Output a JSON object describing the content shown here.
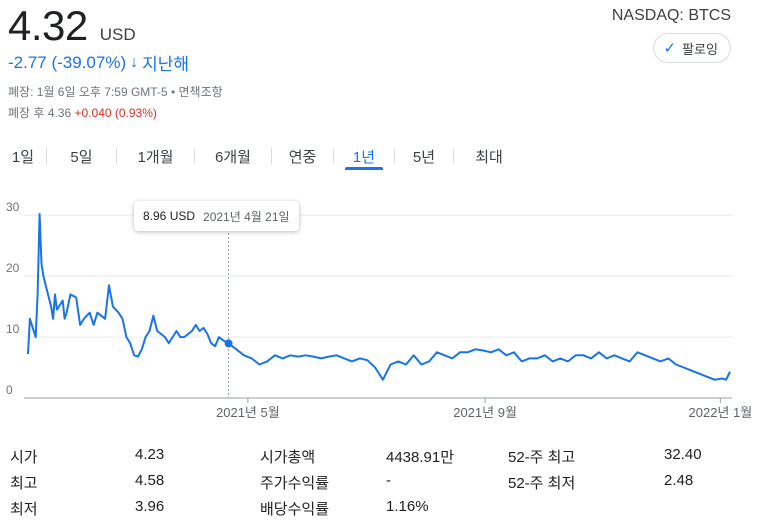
{
  "quote": {
    "price": "4.32",
    "currency": "USD",
    "change": "-2.77 (-39.07%)",
    "change_arrow": "↓",
    "change_period": "지난해",
    "close_info": "폐장: 1월 6일 오후 7:59 GMT-5 • 면책조항",
    "after_hours_label": "폐장 후 4.36",
    "after_hours_change": "+0.040 (0.93%)",
    "exchange": "NASDAQ: BTCS",
    "follow_label": "팔로잉",
    "follow_icon": "check-icon"
  },
  "tabs": [
    {
      "label": "1일"
    },
    {
      "label": "5일"
    },
    {
      "label": "1개월"
    },
    {
      "label": "6개월"
    },
    {
      "label": "연중"
    },
    {
      "label": "1년",
      "active": true
    },
    {
      "label": "5년"
    },
    {
      "label": "최대"
    }
  ],
  "tooltip": {
    "value": "8.96 USD",
    "date": "2021년 4월 21일"
  },
  "chart_data": {
    "type": "line",
    "title": "",
    "xlabel": "",
    "ylabel": "",
    "ylim": [
      0,
      32
    ],
    "yticks": [
      "0",
      "10",
      "20",
      "30"
    ],
    "xticks": [
      "2021년 5월",
      "2021년 9월",
      "2022년 1월"
    ],
    "grid": true,
    "line_color": "#1a73e8",
    "crosshair_date": "2021년 4월 21일",
    "crosshair_value": 8.96,
    "series": [
      {
        "dates": [
          "2021-01-07",
          "2021-01-08",
          "2021-01-11",
          "2021-01-12",
          "2021-01-13",
          "2021-01-14",
          "2021-01-15",
          "2021-01-19",
          "2021-01-20",
          "2021-01-21",
          "2021-01-22",
          "2021-01-25",
          "2021-01-26",
          "2021-01-27",
          "2021-01-29",
          "2021-02-01",
          "2021-02-03",
          "2021-02-05",
          "2021-02-08",
          "2021-02-10",
          "2021-02-12",
          "2021-02-16",
          "2021-02-18",
          "2021-02-20",
          "2021-02-23",
          "2021-02-25",
          "2021-02-27",
          "2021-03-01",
          "2021-03-03",
          "2021-03-05",
          "2021-03-07",
          "2021-03-09",
          "2021-03-11",
          "2021-03-13",
          "2021-03-15",
          "2021-03-17",
          "2021-03-19",
          "2021-03-21",
          "2021-03-23",
          "2021-03-25",
          "2021-03-27",
          "2021-03-29",
          "2021-03-31",
          "2021-04-02",
          "2021-04-04",
          "2021-04-06",
          "2021-04-08",
          "2021-04-10",
          "2021-04-12",
          "2021-04-14",
          "2021-04-16",
          "2021-04-18",
          "2021-04-21",
          "2021-04-25",
          "2021-04-29",
          "2021-05-03",
          "2021-05-07",
          "2021-05-11",
          "2021-05-15",
          "2021-05-19",
          "2021-05-23",
          "2021-05-27",
          "2021-05-31",
          "2021-06-04",
          "2021-06-08",
          "2021-06-12",
          "2021-06-16",
          "2021-06-20",
          "2021-06-24",
          "2021-06-28",
          "2021-07-02",
          "2021-07-06",
          "2021-07-10",
          "2021-07-14",
          "2021-07-18",
          "2021-07-22",
          "2021-07-26",
          "2021-07-30",
          "2021-08-03",
          "2021-08-07",
          "2021-08-11",
          "2021-08-15",
          "2021-08-19",
          "2021-08-23",
          "2021-08-27",
          "2021-08-31",
          "2021-09-04",
          "2021-09-08",
          "2021-09-12",
          "2021-09-16",
          "2021-09-20",
          "2021-09-24",
          "2021-09-28",
          "2021-10-02",
          "2021-10-06",
          "2021-10-10",
          "2021-10-14",
          "2021-10-18",
          "2021-10-22",
          "2021-10-26",
          "2021-10-30",
          "2021-11-03",
          "2021-11-07",
          "2021-11-11",
          "2021-11-15",
          "2021-11-19",
          "2021-11-23",
          "2021-11-27",
          "2021-12-01",
          "2021-12-05",
          "2021-12-09",
          "2021-12-13",
          "2021-12-17",
          "2021-12-21",
          "2021-12-25",
          "2021-12-29",
          "2022-01-02",
          "2022-01-04",
          "2022-01-06"
        ],
        "values": [
          7.2,
          13.0,
          10.0,
          17.0,
          30.2,
          22.0,
          20.0,
          15.0,
          13.0,
          17.0,
          14.5,
          16.0,
          13.0,
          14.0,
          17.0,
          16.5,
          12.0,
          13.0,
          14.0,
          12.0,
          14.0,
          13.0,
          18.5,
          15.0,
          14.0,
          13.0,
          10.0,
          9.0,
          7.0,
          6.8,
          8.0,
          10.0,
          11.0,
          13.5,
          11.0,
          10.5,
          10.0,
          9.0,
          10.0,
          11.0,
          10.0,
          10.0,
          10.5,
          11.0,
          12.0,
          11.0,
          11.5,
          10.5,
          9.0,
          8.5,
          10.0,
          9.5,
          8.96,
          8.0,
          7.0,
          6.5,
          5.5,
          6.0,
          7.0,
          6.5,
          7.0,
          6.8,
          7.0,
          6.8,
          6.5,
          6.8,
          7.0,
          6.5,
          6.0,
          6.5,
          6.2,
          5.0,
          3.0,
          5.5,
          6.0,
          5.5,
          7.0,
          5.5,
          6.0,
          7.5,
          7.0,
          6.5,
          7.5,
          7.5,
          8.0,
          7.8,
          7.5,
          8.0,
          7.0,
          7.5,
          6.0,
          6.5,
          6.5,
          7.0,
          6.0,
          6.5,
          6.0,
          7.0,
          7.0,
          6.5,
          7.5,
          6.5,
          7.0,
          6.5,
          6.0,
          7.5,
          7.0,
          6.5,
          6.0,
          6.5,
          5.5,
          5.0,
          4.5,
          4.0,
          3.5,
          3.0,
          3.2,
          3.0,
          4.32
        ]
      }
    ]
  },
  "stats": {
    "col1": [
      {
        "label": "시가",
        "value": "4.23"
      },
      {
        "label": "최고",
        "value": "4.58"
      },
      {
        "label": "최저",
        "value": "3.96"
      }
    ],
    "col2": [
      {
        "label": "시가총액",
        "value": "4438.91만"
      },
      {
        "label": "주가수익률",
        "value": "-"
      },
      {
        "label": "배당수익률",
        "value": "1.16%"
      }
    ],
    "col3": [
      {
        "label": "52-주 최고",
        "value": "32.40"
      },
      {
        "label": "52-주 최저",
        "value": "2.48"
      }
    ]
  }
}
